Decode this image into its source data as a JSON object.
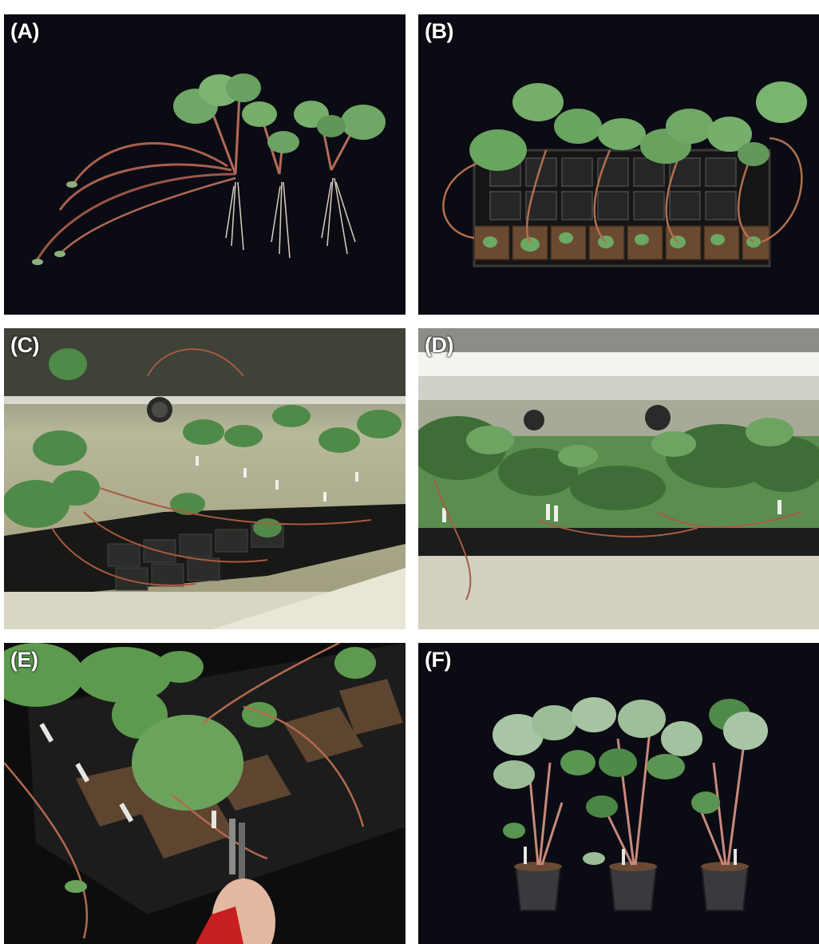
{
  "panels": [
    {
      "label": "(A)"
    },
    {
      "label": "(B)"
    },
    {
      "label": "(C)"
    },
    {
      "label": "(D)"
    },
    {
      "label": "(E)"
    },
    {
      "label": "(F)"
    }
  ],
  "colors": {
    "background_black": "#0a0a12",
    "leaf_green": "#5f9a56",
    "leaf_light": "#9cc49a",
    "runner_red": "#a85848",
    "tray_black": "#1a1a1a",
    "soil_brown": "#6b4a32",
    "lamp_white": "#e8ebe4"
  }
}
